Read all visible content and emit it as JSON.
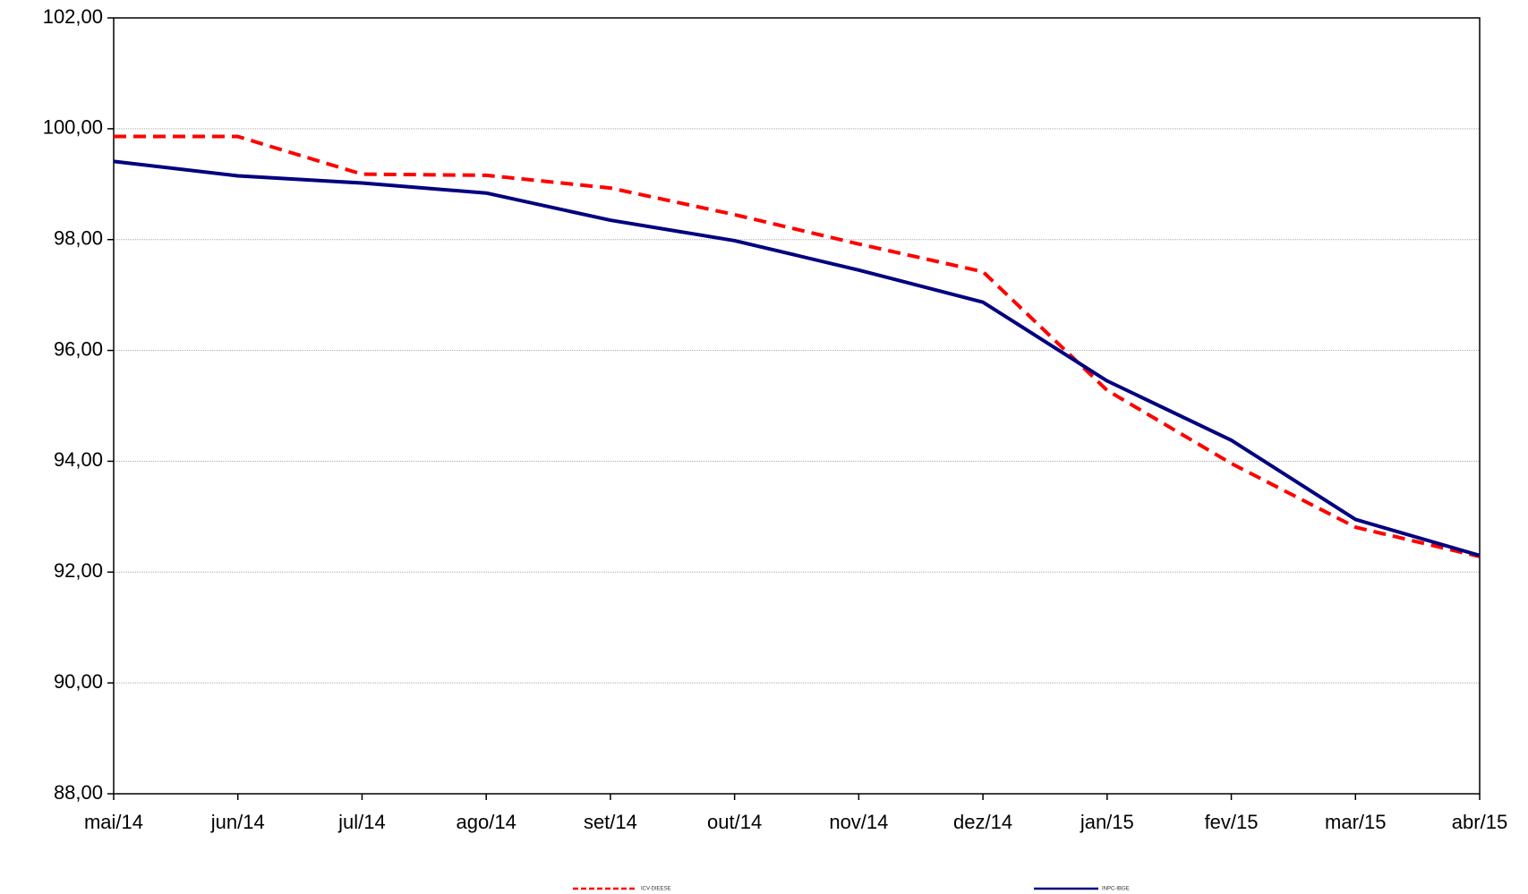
{
  "chart_data": {
    "type": "line",
    "categories": [
      "mai/14",
      "jun/14",
      "jul/14",
      "ago/14",
      "set/14",
      "out/14",
      "nov/14",
      "dez/14",
      "jan/15",
      "fev/15",
      "mar/15",
      "abr/15"
    ],
    "series": [
      {
        "name": "ICV-DIEESE",
        "color": "#ff0000",
        "dashed": true,
        "values": [
          99.86,
          99.86,
          99.18,
          99.16,
          98.93,
          98.45,
          97.92,
          97.42,
          95.28,
          93.96,
          92.81,
          92.28
        ]
      },
      {
        "name": "INPC-IBGE",
        "color": "#000080",
        "dashed": false,
        "values": [
          99.41,
          99.15,
          99.02,
          98.84,
          98.35,
          97.98,
          97.45,
          96.87,
          95.45,
          94.38,
          92.95,
          92.3
        ]
      }
    ],
    "ylim": [
      88,
      102
    ],
    "yticks": [
      {
        "value": 88,
        "label": "88,00"
      },
      {
        "value": 90,
        "label": "90,00"
      },
      {
        "value": 92,
        "label": "92,00"
      },
      {
        "value": 94,
        "label": "94,00"
      },
      {
        "value": 96,
        "label": "96,00"
      },
      {
        "value": 98,
        "label": "98,00"
      },
      {
        "value": 100,
        "label": "100,00"
      },
      {
        "value": 102,
        "label": "102,00"
      }
    ],
    "grid": true,
    "legend": "bottom"
  }
}
